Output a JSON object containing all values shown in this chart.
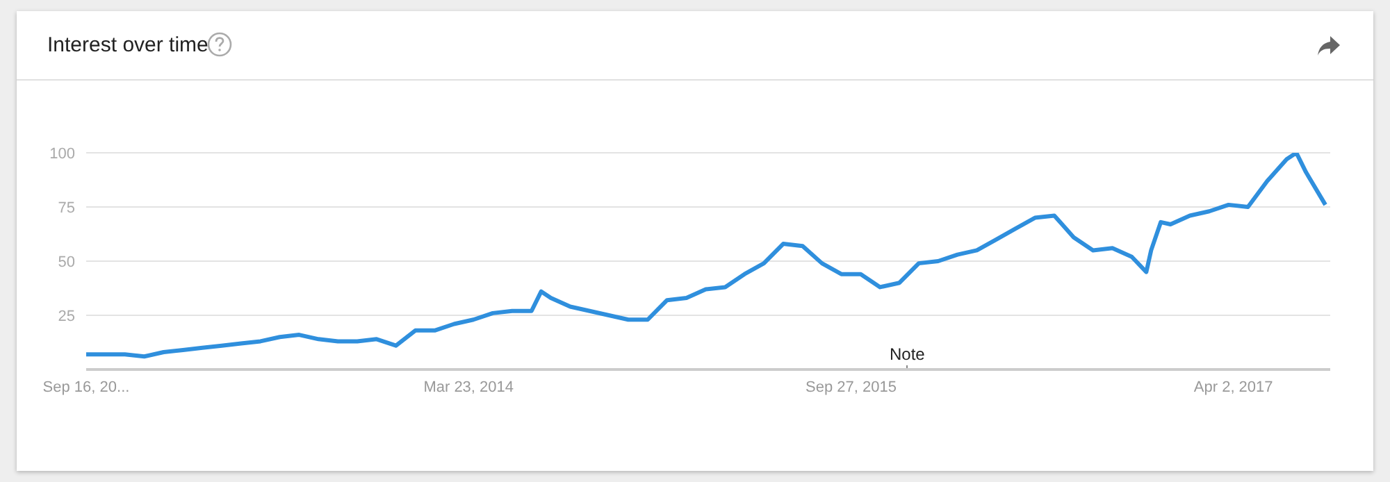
{
  "chart_data": {
    "type": "line",
    "title": "Interest over time",
    "x": [
      "2012-09-16",
      "2012-10-14",
      "2012-11-11",
      "2012-12-09",
      "2013-01-06",
      "2013-02-03",
      "2013-03-03",
      "2013-03-31",
      "2013-04-28",
      "2013-05-26",
      "2013-06-23",
      "2013-07-21",
      "2013-08-18",
      "2013-09-15",
      "2013-10-13",
      "2013-11-10",
      "2013-12-08",
      "2014-01-05",
      "2014-02-02",
      "2014-03-02",
      "2014-03-30",
      "2014-04-27",
      "2014-05-25",
      "2014-06-22",
      "2014-07-06",
      "2014-07-20",
      "2014-08-17",
      "2014-09-14",
      "2014-10-12",
      "2014-11-09",
      "2014-12-07",
      "2015-01-04",
      "2015-02-01",
      "2015-03-01",
      "2015-03-29",
      "2015-04-26",
      "2015-05-24",
      "2015-06-21",
      "2015-07-19",
      "2015-08-16",
      "2015-09-13",
      "2015-10-11",
      "2015-11-08",
      "2015-12-06",
      "2016-01-03",
      "2016-01-31",
      "2016-02-28",
      "2016-03-27",
      "2016-04-24",
      "2016-05-22",
      "2016-06-19",
      "2016-07-17",
      "2016-08-14",
      "2016-09-11",
      "2016-10-09",
      "2016-11-06",
      "2016-11-27",
      "2016-12-04",
      "2016-12-18",
      "2017-01-01",
      "2017-01-29",
      "2017-02-26",
      "2017-03-26",
      "2017-04-23",
      "2017-05-21",
      "2017-06-18",
      "2017-07-02",
      "2017-07-16",
      "2017-08-13"
    ],
    "series": [
      {
        "color": "#2f8fdd",
        "values": [
          7,
          7,
          7,
          6,
          8,
          9,
          10,
          11,
          12,
          13,
          15,
          16,
          14,
          13,
          13,
          14,
          11,
          18,
          18,
          21,
          23,
          26,
          27,
          27,
          36,
          33,
          29,
          27,
          25,
          23,
          23,
          32,
          33,
          37,
          38,
          44,
          49,
          58,
          57,
          49,
          44,
          44,
          38,
          40,
          49,
          50,
          53,
          55,
          60,
          65,
          70,
          71,
          61,
          55,
          56,
          52,
          45,
          55,
          68,
          67,
          71,
          73,
          76,
          75,
          87,
          97,
          100,
          91,
          76
        ]
      }
    ],
    "xlim": [
      "2012-09-16",
      "2017-08-20"
    ],
    "xticks": [
      {
        "value": "2012-09-16",
        "label": "Sep 16, 20..."
      },
      {
        "value": "2014-03-23",
        "label": "Mar 23, 2014"
      },
      {
        "value": "2015-09-27",
        "label": "Sep 27, 2015"
      },
      {
        "value": "2017-04-02",
        "label": "Apr 2, 2017"
      }
    ],
    "ylim": [
      0,
      100
    ],
    "yticks": [
      25,
      50,
      75,
      100
    ],
    "grid": "y",
    "line_style": "solid",
    "annotations": [
      "Note"
    ]
  }
}
